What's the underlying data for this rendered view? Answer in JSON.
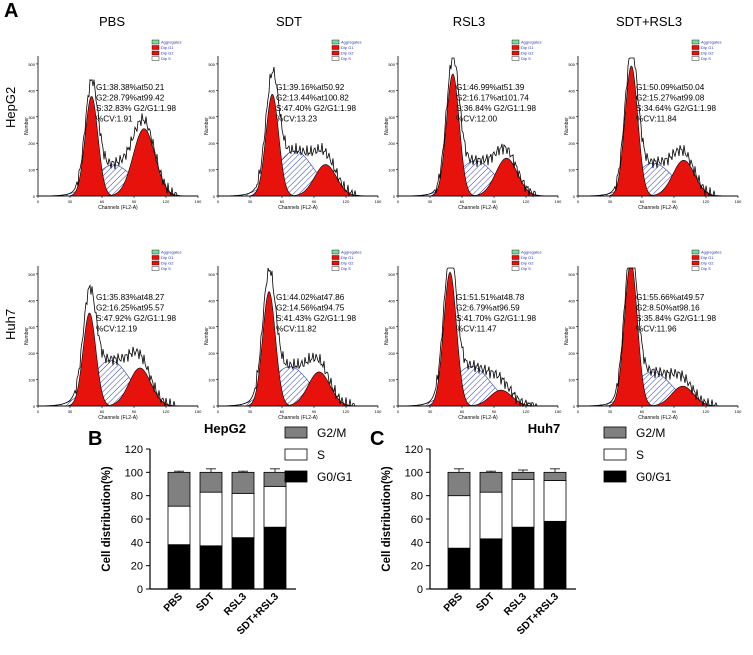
{
  "figure": {
    "panel_A_label": "A",
    "panel_B_label": "B",
    "panel_C_label": "C",
    "columns": [
      "PBS",
      "SDT",
      "RSL3",
      "SDT+RSL3"
    ],
    "rows": [
      "HepG2",
      "Huh7"
    ],
    "legend_small": [
      "Aggregates",
      "Dip G1",
      "Dip G2",
      "Dip S"
    ],
    "x_axis_label": "Channels (FL2-A)",
    "y_axis_label": "Number",
    "x_ticks": [
      "0",
      "30",
      "60",
      "90",
      "120",
      "150"
    ],
    "y_ticks": [
      "0",
      "100",
      "200",
      "300",
      "400",
      "500"
    ]
  },
  "flow_stats": [
    [
      {
        "g1": "G1:38.38%at50.21",
        "g2": "G2:28.79%at99.42",
        "s": "S:32.83% G2/G1:1.98",
        "cv": "%CV:1.91"
      },
      {
        "g1": "G1:39.16%at50.92",
        "g2": "G2:13.44%at100.82",
        "s": "S:47.40% G2/G1:1.98",
        "cv": "%CV:13.23"
      },
      {
        "g1": "G1:46.99%at51.39",
        "g2": "G2:16.17%at101.74",
        "s": "S:36.84% G2/G1:1.98",
        "cv": "%CV:12.00"
      },
      {
        "g1": "G1:50.09%at50.04",
        "g2": "G2:15.27%at99.08",
        "s": "S:34.64% G2/G1:1.98",
        "cv": "%CV:11.84"
      }
    ],
    [
      {
        "g1": "G1:35.83%at48.27",
        "g2": "G2:16.25%at95.57",
        "s": "S:47.92% G2/G1:1.98",
        "cv": "%CV:12.19"
      },
      {
        "g1": "G1:44.02%at47.86",
        "g2": "G2:14.56%at94.75",
        "s": "S:41.43% G2/G1:1.98",
        "cv": "%CV:11.82"
      },
      {
        "g1": "G1:51.51%at48.78",
        "g2": "G2:6.79%at96.59",
        "s": "S:41.70% G2/G1:1.98",
        "cv": "%CV:11.47"
      },
      {
        "g1": "G1:55.66%at49.57",
        "g2": "G2:8.50%at98.16",
        "s": "S:35.84% G2/G1:1.98",
        "cv": "%CV:11.96"
      }
    ]
  ],
  "chart_data": [
    {
      "type": "bar",
      "stacked": true,
      "title": "HepG2",
      "categories": [
        "PBS",
        "SDT",
        "RSL3",
        "SDT+RSL3"
      ],
      "series": [
        {
          "name": "G0/G1",
          "values": [
            38,
            37,
            44,
            53
          ],
          "errors": [
            1,
            2,
            3,
            3
          ]
        },
        {
          "name": "S",
          "values": [
            33,
            46,
            38,
            35
          ],
          "errors": [
            2,
            2,
            2,
            1
          ]
        },
        {
          "name": "G2/M",
          "values": [
            29,
            17,
            18,
            12
          ],
          "errors": [
            1,
            3,
            1,
            3
          ]
        }
      ],
      "legend_order": [
        "G2/M",
        "S",
        "G0/G1"
      ],
      "xlabel": "",
      "ylabel": "Cell distribution(%)",
      "ylim": [
        0,
        120
      ],
      "yticks": [
        0,
        20,
        40,
        60,
        80,
        100,
        120
      ],
      "colors": {
        "G0/G1": "#000000",
        "S": "#ffffff",
        "G2/M": "#808080"
      }
    },
    {
      "type": "bar",
      "stacked": true,
      "title": "Huh7",
      "categories": [
        "PBS",
        "SDT",
        "RSL3",
        "SDT+RSL3"
      ],
      "series": [
        {
          "name": "G0/G1",
          "values": [
            35,
            43,
            53,
            58
          ],
          "errors": [
            1,
            1,
            2,
            2
          ]
        },
        {
          "name": "S",
          "values": [
            45,
            40,
            41,
            35
          ],
          "errors": [
            2,
            1,
            1,
            1
          ]
        },
        {
          "name": "G2/M",
          "values": [
            20,
            17,
            6,
            7
          ],
          "errors": [
            3,
            1,
            2,
            3
          ]
        }
      ],
      "legend_order": [
        "G2/M",
        "S",
        "G0/G1"
      ],
      "xlabel": "",
      "ylabel": "Cell distribution(%)",
      "ylim": [
        0,
        120
      ],
      "yticks": [
        0,
        20,
        40,
        60,
        80,
        100,
        120
      ],
      "colors": {
        "G0/G1": "#000000",
        "S": "#ffffff",
        "G2/M": "#808080"
      }
    }
  ]
}
